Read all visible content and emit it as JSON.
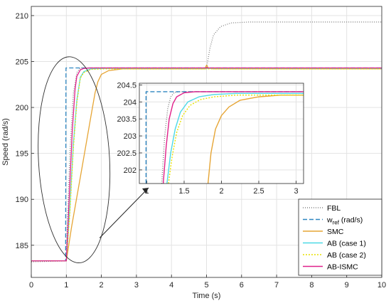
{
  "chart_data": [
    {
      "type": "line",
      "xlabel": "Time (s)",
      "ylabel": "Speed (rad/s)",
      "xlim": [
        0,
        10
      ],
      "ylim": [
        181.5,
        211
      ],
      "xticks": [
        "0",
        "1",
        "2",
        "3",
        "4",
        "5",
        "6",
        "7",
        "8",
        "9",
        "10"
      ],
      "yticks": [
        "185",
        "190",
        "195",
        "200",
        "205",
        "210"
      ],
      "grid": true,
      "legend_position": "bottom-right",
      "series": [
        {
          "name": "FBL",
          "color": "#808080",
          "dash": "1,2",
          "x": [
            0,
            1,
            1.02,
            1.1,
            1.2,
            1.3,
            1.4,
            2,
            4.95,
            5.0,
            5.1,
            5.2,
            5.4,
            5.7,
            6.2,
            7,
            10
          ],
          "y": [
            183.2,
            183.3,
            186,
            195,
            201.5,
            203.8,
            204.3,
            204.3,
            204.3,
            204.3,
            206.5,
            207.9,
            208.8,
            209.2,
            209.3,
            209.3,
            209.3
          ]
        },
        {
          "name": "w_ref (rad/s)",
          "color": "#2e86c1",
          "dash": "6,3",
          "x": [
            0,
            0.98,
            0.99,
            10
          ],
          "y": [
            183.3,
            183.3,
            204.3,
            204.3
          ]
        },
        {
          "name": "SMC",
          "color": "#e6a535",
          "dash": "",
          "x": [
            0,
            1.0,
            1.15,
            1.45,
            1.7,
            1.82,
            1.9,
            2.0,
            2.2,
            2.6,
            4.95,
            5.0,
            5.05,
            5.2,
            10
          ],
          "y": [
            183.3,
            183.3,
            187,
            193.5,
            199,
            201.6,
            202.8,
            203.6,
            204.0,
            204.2,
            204.2,
            204.6,
            204.3,
            204.2,
            204.2
          ]
        },
        {
          "name": "AB (case 1)",
          "color": "#4dd9e6",
          "dash": "",
          "x": [
            0,
            1.0,
            1.1,
            1.2,
            1.3,
            1.4,
            1.5,
            1.7,
            2.1,
            10
          ],
          "y": [
            183.3,
            183.3,
            189,
            196,
            200.8,
            203.3,
            203.9,
            204.2,
            204.25,
            204.25
          ]
        },
        {
          "name": "AB (case 2)",
          "color": "#e8e000",
          "dash": "2,2",
          "x": [
            0,
            1.0,
            1.1,
            1.2,
            1.3,
            1.4,
            1.5,
            1.7,
            2.1,
            10
          ],
          "y": [
            183.3,
            183.3,
            188.5,
            195.5,
            200.5,
            203.2,
            203.8,
            204.15,
            204.2,
            204.2
          ]
        },
        {
          "name": "AB-ISMC",
          "color": "#e0218a",
          "dash": "",
          "x": [
            0,
            1.0,
            1.08,
            1.17,
            1.25,
            1.3,
            1.4,
            1.5,
            1.7,
            10
          ],
          "y": [
            183.3,
            183.3,
            190,
            197.5,
            202,
            203.4,
            204.1,
            204.25,
            204.3,
            204.3
          ]
        }
      ]
    },
    {
      "type": "line",
      "xlim": [
        0.9,
        3.1
      ],
      "ylim": [
        201.6,
        204.55
      ],
      "xticks": [
        "1",
        "1.5",
        "2",
        "2.5",
        "3"
      ],
      "yticks": [
        "202",
        "202.5",
        "203",
        "203.5",
        "204",
        "204.5"
      ],
      "grid": true,
      "series": [
        {
          "name": "FBL",
          "color": "#808080",
          "dash": "1,2",
          "x": [
            1.2,
            1.24,
            1.28,
            1.32,
            1.37,
            1.45,
            1.6,
            3.1
          ],
          "y": [
            201.6,
            203.0,
            203.8,
            204.15,
            204.28,
            204.3,
            204.3,
            204.3
          ]
        },
        {
          "name": "w_ref (rad/s)",
          "color": "#2e86c1",
          "dash": "6,3",
          "x": [
            0.99,
            0.99,
            3.1
          ],
          "y": [
            201.6,
            204.3,
            204.3
          ]
        },
        {
          "name": "SMC",
          "color": "#e6a535",
          "dash": "",
          "x": [
            1.82,
            1.86,
            1.92,
            2.0,
            2.1,
            2.25,
            2.5,
            2.8,
            3.1
          ],
          "y": [
            201.6,
            202.5,
            203.2,
            203.6,
            203.85,
            204.05,
            204.15,
            204.2,
            204.2
          ]
        },
        {
          "name": "AB (case 1)",
          "color": "#4dd9e6",
          "dash": "",
          "x": [
            1.27,
            1.32,
            1.38,
            1.45,
            1.55,
            1.7,
            1.9,
            2.2,
            3.1
          ],
          "y": [
            201.6,
            202.5,
            203.2,
            203.7,
            204.0,
            204.15,
            204.22,
            204.25,
            204.25
          ]
        },
        {
          "name": "AB (case 2)",
          "color": "#e8e000",
          "dash": "2,2",
          "x": [
            1.29,
            1.34,
            1.4,
            1.48,
            1.58,
            1.72,
            1.9,
            2.2,
            3.1
          ],
          "y": [
            201.6,
            202.4,
            203.1,
            203.6,
            203.9,
            204.07,
            204.15,
            204.2,
            204.2
          ]
        },
        {
          "name": "AB-ISMC",
          "color": "#e0218a",
          "dash": "",
          "x": [
            1.22,
            1.26,
            1.3,
            1.35,
            1.4,
            1.5,
            1.65,
            3.1
          ],
          "y": [
            201.6,
            202.7,
            203.5,
            203.95,
            204.15,
            204.27,
            204.3,
            204.3
          ]
        }
      ]
    }
  ]
}
